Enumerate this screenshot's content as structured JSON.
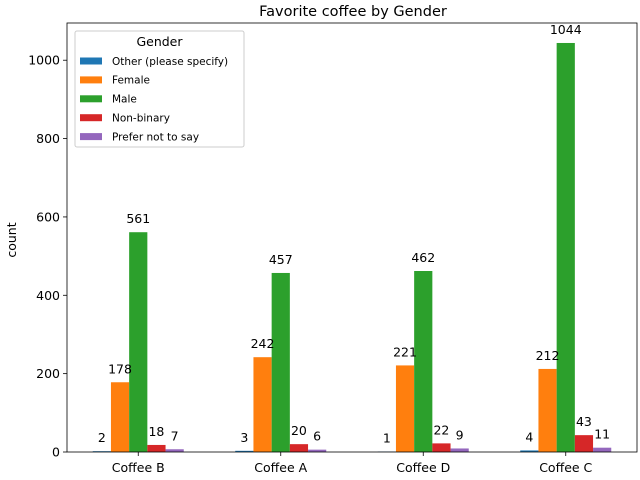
{
  "chart_data": {
    "type": "bar",
    "title": "Favorite coffee by Gender",
    "xlabel": "",
    "ylabel": "count",
    "categories": [
      "Coffee B",
      "Coffee A",
      "Coffee D",
      "Coffee C"
    ],
    "ylim": [
      0,
      1095
    ],
    "yticks": [
      0,
      200,
      400,
      600,
      800,
      1000
    ],
    "grid": false,
    "legend": {
      "title": "Gender",
      "placement": "top-left"
    },
    "series": [
      {
        "name": "Other (please specify)",
        "color": "#1f77b4",
        "values": [
          2,
          3,
          1,
          4
        ]
      },
      {
        "name": "Female",
        "color": "#ff7f0e",
        "values": [
          178,
          242,
          221,
          212
        ]
      },
      {
        "name": "Male",
        "color": "#2ca02c",
        "values": [
          561,
          457,
          462,
          1044
        ]
      },
      {
        "name": "Non-binary",
        "color": "#d62728",
        "values": [
          18,
          20,
          22,
          43
        ]
      },
      {
        "name": "Prefer not to say",
        "color": "#9467bd",
        "values": [
          7,
          6,
          9,
          11
        ]
      }
    ]
  }
}
